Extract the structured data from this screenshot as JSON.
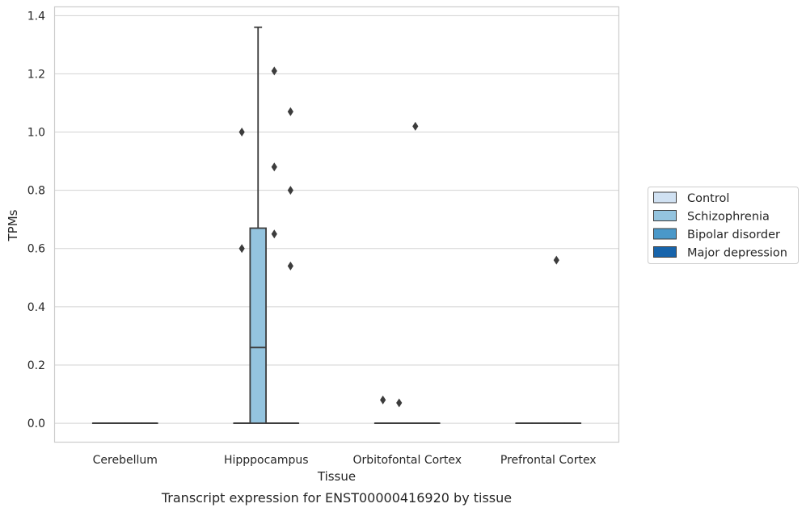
{
  "chart_data": {
    "type": "box",
    "xlabel": "Tissue",
    "ylabel": "TPMs",
    "caption": "Transcript expression for ENST00000416920 by tissue",
    "categories": [
      "Cerebellum",
      "Hipppocampus",
      "Orbitofontal Cortex",
      "Prefrontal Cortex"
    ],
    "ylim": [
      -0.065,
      1.43
    ],
    "yticks": [
      0.0,
      0.2,
      0.4,
      0.6,
      0.8,
      1.0,
      1.2,
      1.4
    ],
    "ytick_labels": [
      "0.0",
      "0.2",
      "0.4",
      "0.6",
      "0.8",
      "1.0",
      "1.2",
      "1.4"
    ],
    "grid": "horizontal",
    "legend": {
      "position": "right"
    },
    "colors": {
      "Control": "#d0e1f2",
      "Schizophrenia": "#94c4df",
      "Bipolar disorder": "#4a98c9",
      "Major depression": "#1764ab",
      "line": "#3c3c3c",
      "grid": "#d3d3d3",
      "frame": "#cccccc"
    },
    "series": [
      {
        "name": "Control",
        "boxes": [
          {
            "category": "Cerebellum",
            "q1": 0,
            "median": 0,
            "q3": 0,
            "whisker_low": 0,
            "whisker_high": 0,
            "outliers": []
          },
          {
            "category": "Hipppocampus",
            "q1": 0,
            "median": 0,
            "q3": 0,
            "whisker_low": 0,
            "whisker_high": 0,
            "outliers": [
              0.6,
              1.0
            ]
          },
          {
            "category": "Orbitofontal Cortex",
            "q1": 0,
            "median": 0,
            "q3": 0,
            "whisker_low": 0,
            "whisker_high": 0,
            "outliers": [
              0.08
            ]
          },
          {
            "category": "Prefrontal Cortex",
            "q1": 0,
            "median": 0,
            "q3": 0,
            "whisker_low": 0,
            "whisker_high": 0,
            "outliers": []
          }
        ]
      },
      {
        "name": "Schizophrenia",
        "boxes": [
          {
            "category": "Cerebellum",
            "q1": 0,
            "median": 0,
            "q3": 0,
            "whisker_low": 0,
            "whisker_high": 0,
            "outliers": []
          },
          {
            "category": "Hipppocampus",
            "q1": 0,
            "median": 0.26,
            "q3": 0.67,
            "whisker_low": 0,
            "whisker_high": 1.36,
            "outliers": []
          },
          {
            "category": "Orbitofontal Cortex",
            "q1": 0,
            "median": 0,
            "q3": 0,
            "whisker_low": 0,
            "whisker_high": 0,
            "outliers": [
              0.07
            ]
          },
          {
            "category": "Prefrontal Cortex",
            "q1": 0,
            "median": 0,
            "q3": 0,
            "whisker_low": 0,
            "whisker_high": 0,
            "outliers": []
          }
        ]
      },
      {
        "name": "Bipolar disorder",
        "boxes": [
          {
            "category": "Cerebellum",
            "q1": 0,
            "median": 0,
            "q3": 0,
            "whisker_low": 0,
            "whisker_high": 0,
            "outliers": []
          },
          {
            "category": "Hipppocampus",
            "q1": 0,
            "median": 0,
            "q3": 0,
            "whisker_low": 0,
            "whisker_high": 0,
            "outliers": [
              0.65,
              0.88,
              1.21
            ]
          },
          {
            "category": "Orbitofontal Cortex",
            "q1": 0,
            "median": 0,
            "q3": 0,
            "whisker_low": 0,
            "whisker_high": 0,
            "outliers": [
              1.02
            ]
          },
          {
            "category": "Prefrontal Cortex",
            "q1": 0,
            "median": 0,
            "q3": 0,
            "whisker_low": 0,
            "whisker_high": 0,
            "outliers": [
              0.56
            ]
          }
        ]
      },
      {
        "name": "Major depression",
        "boxes": [
          {
            "category": "Cerebellum",
            "q1": 0,
            "median": 0,
            "q3": 0,
            "whisker_low": 0,
            "whisker_high": 0,
            "outliers": []
          },
          {
            "category": "Hipppocampus",
            "q1": 0,
            "median": 0,
            "q3": 0,
            "whisker_low": 0,
            "whisker_high": 0,
            "outliers": [
              0.54,
              0.8,
              1.07
            ]
          },
          {
            "category": "Orbitofontal Cortex",
            "q1": 0,
            "median": 0,
            "q3": 0,
            "whisker_low": 0,
            "whisker_high": 0,
            "outliers": []
          },
          {
            "category": "Prefrontal Cortex",
            "q1": 0,
            "median": 0,
            "q3": 0,
            "whisker_low": 0,
            "whisker_high": 0,
            "outliers": []
          }
        ]
      }
    ]
  }
}
